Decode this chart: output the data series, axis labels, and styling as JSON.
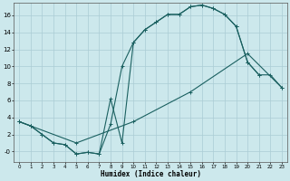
{
  "xlabel": "Humidex (Indice chaleur)",
  "xlim": [
    -0.5,
    23.5
  ],
  "ylim": [
    -1.2,
    17.5
  ],
  "yticks": [
    0,
    2,
    4,
    6,
    8,
    10,
    12,
    14,
    16
  ],
  "xticks": [
    0,
    1,
    2,
    3,
    4,
    5,
    6,
    7,
    8,
    9,
    10,
    11,
    12,
    13,
    14,
    15,
    16,
    17,
    18,
    19,
    20,
    21,
    22,
    23
  ],
  "bg_color": "#cce8ec",
  "grid_color": "#aaccd4",
  "line_color": "#1a6060",
  "line_a_x": [
    0,
    1,
    2,
    3,
    4,
    5,
    6,
    7,
    8,
    9,
    10,
    11,
    12,
    13,
    14,
    15,
    16,
    17,
    18,
    19,
    20,
    21
  ],
  "line_a_y": [
    3.5,
    3.0,
    2.0,
    1.0,
    0.8,
    -0.3,
    -0.1,
    -0.3,
    6.2,
    1.0,
    12.8,
    14.3,
    15.2,
    16.1,
    16.1,
    17.0,
    17.2,
    16.8,
    16.1,
    14.7,
    10.5,
    9.0
  ],
  "line_b_x": [
    0,
    1,
    2,
    3,
    4,
    5,
    6,
    7,
    8,
    9,
    10,
    11,
    12,
    13,
    14,
    15,
    16,
    17,
    18,
    19,
    20,
    21,
    22,
    23
  ],
  "line_b_y": [
    3.5,
    3.0,
    2.0,
    1.0,
    0.8,
    -0.3,
    -0.1,
    -0.3,
    3.2,
    10.0,
    12.8,
    14.3,
    15.2,
    16.1,
    16.1,
    17.0,
    17.2,
    16.8,
    16.1,
    14.7,
    10.5,
    9.0,
    9.0,
    7.5
  ],
  "line_c_x": [
    0,
    1,
    5,
    10,
    15,
    20,
    23
  ],
  "line_c_y": [
    3.5,
    3.0,
    1.0,
    3.5,
    7.0,
    11.5,
    7.5
  ]
}
